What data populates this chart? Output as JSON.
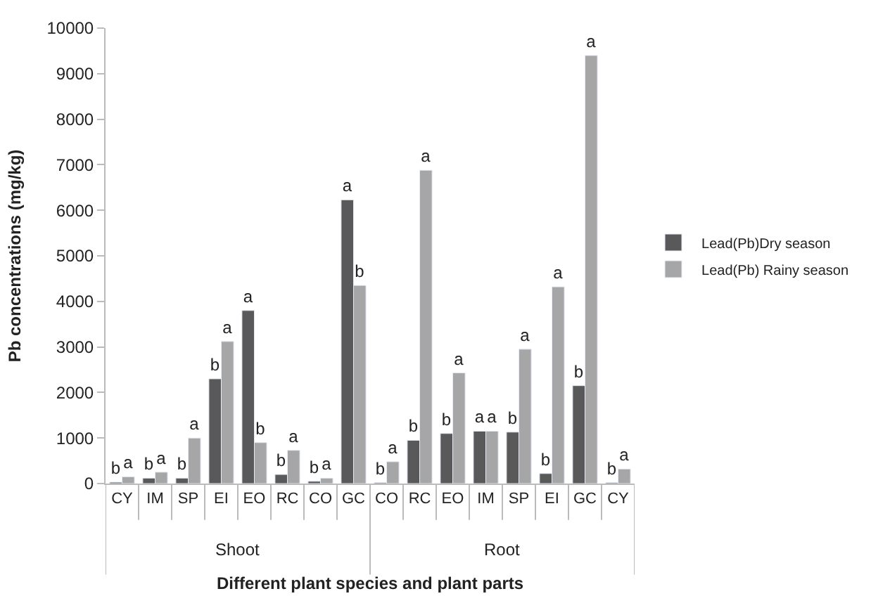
{
  "chart_data": {
    "type": "bar",
    "ylabel": "Pb concentrations (mg/kg)",
    "xlabel": "Different plant species and plant parts",
    "categories": [
      "CY",
      "IM",
      "SP",
      "EI",
      "EO",
      "RC",
      "CO",
      "GC",
      "CO",
      "RC",
      "EO",
      "IM",
      "SP",
      "EI",
      "GC",
      "CY"
    ],
    "annotations": [
      "Shoot",
      "Root"
    ],
    "series": [
      {
        "name": "Lead(Pb)Dry season",
        "color": "#595959",
        "values": [
          30,
          120,
          120,
          2300,
          3800,
          200,
          50,
          6230,
          20,
          950,
          1100,
          1150,
          1130,
          220,
          2150,
          20
        ],
        "value_labels": [
          "b",
          "b",
          "b",
          "b",
          "a",
          "b",
          "b",
          "a",
          "b",
          "b",
          "b",
          "a",
          "b",
          "b",
          "b",
          "b"
        ]
      },
      {
        "name": "Lead(Pb) Rainy season",
        "color": "#a6a6a6",
        "values": [
          150,
          250,
          1000,
          3120,
          900,
          730,
          120,
          4350,
          480,
          6880,
          2430,
          1150,
          2950,
          4320,
          9400,
          320
        ],
        "value_labels": [
          "a",
          "a",
          "a",
          "a",
          "b",
          "a",
          "a",
          "b",
          "a",
          "a",
          "a",
          "a",
          "a",
          "a",
          "a",
          "a"
        ]
      }
    ],
    "ylim": [
      0,
      10000
    ],
    "yticks": [
      0,
      1000,
      2000,
      3000,
      4000,
      5000,
      6000,
      7000,
      8000,
      9000,
      10000
    ],
    "legend": "right"
  }
}
